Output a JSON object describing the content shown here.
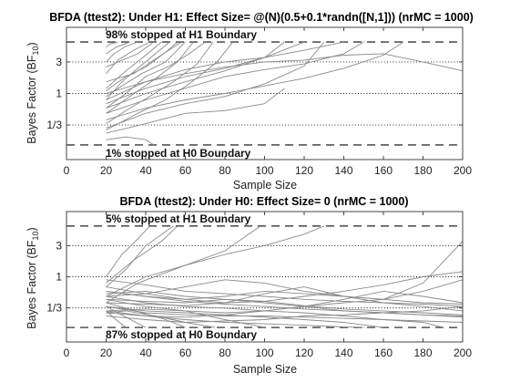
{
  "chart_data": [
    {
      "type": "line",
      "title": "BFDA (ttest2): Under H1: Effect Size= @(N)(0.5+0.1*randn([N,1])) (nrMC = 1000)",
      "xlabel": "Sample Size",
      "ylabel_main": "Bayes Factor (BF",
      "ylabel_sub": "10",
      "ylabel_end": ")",
      "xlim": [
        0,
        200
      ],
      "ylim": [
        0.1,
        10
      ],
      "yscale": "log",
      "xticks": [
        0,
        20,
        40,
        60,
        80,
        100,
        120,
        140,
        160,
        180,
        200
      ],
      "yticks": [
        {
          "value": 3,
          "label": "3"
        },
        {
          "value": 1,
          "label": "1"
        },
        {
          "value": 0.3333,
          "label": "1/3"
        }
      ],
      "boundaries": [
        6,
        0.1667
      ],
      "annotations": {
        "upper": "98% stopped at H1 Boundary",
        "lower": "1% stopped at H0 Boundary"
      },
      "series": [
        {
          "x": [
            20,
            30,
            40,
            48
          ],
          "y": [
            1.2,
            2.2,
            3.8,
            6
          ]
        },
        {
          "x": [
            20,
            26,
            34,
            42
          ],
          "y": [
            2.0,
            3.2,
            4.5,
            6
          ]
        },
        {
          "x": [
            20,
            28,
            36,
            44,
            52
          ],
          "y": [
            0.8,
            1.5,
            2.4,
            3.8,
            6
          ]
        },
        {
          "x": [
            20,
            24,
            30,
            36
          ],
          "y": [
            3.0,
            4.0,
            5.2,
            6
          ]
        },
        {
          "x": [
            20,
            32,
            44,
            56,
            64
          ],
          "y": [
            0.5,
            0.9,
            1.6,
            3.0,
            6
          ]
        },
        {
          "x": [
            20,
            30,
            42,
            54,
            66,
            74
          ],
          "y": [
            0.35,
            0.55,
            0.9,
            1.5,
            2.8,
            6
          ]
        },
        {
          "x": [
            20,
            25,
            32
          ],
          "y": [
            4.0,
            5.0,
            6
          ]
        },
        {
          "x": [
            20,
            30,
            40,
            52,
            62,
            70
          ],
          "y": [
            0.6,
            1.0,
            1.8,
            2.6,
            4.0,
            6
          ]
        },
        {
          "x": [
            20,
            22,
            26
          ],
          "y": [
            5.0,
            5.6,
            6
          ]
        },
        {
          "x": [
            20,
            34,
            46,
            58
          ],
          "y": [
            1.5,
            2.0,
            3.5,
            6
          ]
        },
        {
          "x": [
            20,
            28,
            38,
            50,
            60
          ],
          "y": [
            0.9,
            1.3,
            2.0,
            3.0,
            6
          ]
        },
        {
          "x": [
            20,
            36,
            50,
            62,
            76,
            84
          ],
          "y": [
            0.28,
            0.5,
            0.8,
            1.4,
            3.0,
            6
          ]
        },
        {
          "x": [
            20,
            30,
            40,
            50,
            56
          ],
          "y": [
            1.1,
            1.8,
            2.5,
            4.2,
            6
          ]
        },
        {
          "x": [
            20,
            26,
            36,
            44
          ],
          "y": [
            2.5,
            3.0,
            4.0,
            6
          ]
        },
        {
          "x": [
            20,
            40,
            60,
            80,
            100,
            120,
            140,
            160,
            180,
            200
          ],
          "y": [
            1.0,
            1.5,
            2.0,
            2.5,
            3.0,
            3.2,
            3.8,
            4.0,
            3.0,
            2.2
          ]
        },
        {
          "x": [
            20,
            40,
            60,
            80,
            100,
            110
          ],
          "y": [
            0.6,
            1.0,
            1.5,
            2.2,
            3.5,
            6
          ]
        },
        {
          "x": [
            20,
            40,
            60,
            80,
            100,
            120,
            140,
            150
          ],
          "y": [
            0.5,
            0.8,
            1.2,
            1.8,
            2.3,
            2.8,
            4.0,
            6
          ]
        },
        {
          "x": [
            20,
            40,
            60,
            80,
            100,
            120,
            140,
            160,
            170
          ],
          "y": [
            0.4,
            0.6,
            0.8,
            1.0,
            1.3,
            1.7,
            2.4,
            3.8,
            6
          ]
        },
        {
          "x": [
            20,
            40,
            60,
            80,
            100,
            120,
            130
          ],
          "y": [
            0.3,
            0.5,
            0.7,
            0.9,
            1.4,
            2.6,
            6
          ]
        },
        {
          "x": [
            20,
            40,
            60,
            80,
            100,
            110
          ],
          "y": [
            0.25,
            0.35,
            0.5,
            0.55,
            0.7,
            1.2
          ]
        },
        {
          "x": [
            20,
            30,
            40,
            44
          ],
          "y": [
            0.2,
            0.22,
            0.2,
            0.1667
          ]
        },
        {
          "x": [
            20,
            40,
            60,
            80,
            100,
            120,
            140
          ],
          "y": [
            0.8,
            1.5,
            2.3,
            3.0,
            3.5,
            4.5,
            6
          ]
        },
        {
          "x": [
            20,
            40,
            60,
            80,
            100,
            120
          ],
          "y": [
            0.7,
            1.2,
            1.8,
            2.4,
            3.5,
            6
          ]
        }
      ]
    },
    {
      "type": "line",
      "title": "BFDA (ttest2): Under H0: Effect Size= 0 (nrMC = 1000)",
      "xlabel": "Sample Size",
      "ylabel_main": "Bayes Factor (BF",
      "ylabel_sub": "10",
      "ylabel_end": ")",
      "xlim": [
        0,
        200
      ],
      "ylim": [
        0.1,
        10
      ],
      "yscale": "log",
      "xticks": [
        0,
        20,
        40,
        60,
        80,
        100,
        120,
        140,
        160,
        180,
        200
      ],
      "yticks": [
        {
          "value": 3,
          "label": "3"
        },
        {
          "value": 1,
          "label": "1"
        },
        {
          "value": 0.3333,
          "label": "1/3"
        }
      ],
      "boundaries": [
        6,
        0.1667
      ],
      "annotations": {
        "upper": "5% stopped at H1 Boundary",
        "lower": "87% stopped at H0 Boundary"
      },
      "series": [
        {
          "x": [
            20,
            28,
            36,
            42
          ],
          "y": [
            1.0,
            2.2,
            3.8,
            6
          ]
        },
        {
          "x": [
            20,
            30,
            40,
            54
          ],
          "y": [
            0.7,
            1.3,
            3.0,
            6
          ]
        },
        {
          "x": [
            20,
            36,
            60,
            80,
            92,
            98
          ],
          "y": [
            0.4,
            0.8,
            1.5,
            2.5,
            4.5,
            6
          ]
        },
        {
          "x": [
            20,
            34,
            48,
            56
          ],
          "y": [
            0.8,
            1.8,
            3.5,
            6
          ]
        },
        {
          "x": [
            20,
            40,
            60,
            80,
            100,
            120,
            130
          ],
          "y": [
            0.5,
            1.0,
            1.5,
            2.2,
            3.0,
            4.5,
            6
          ]
        },
        {
          "x": [
            20,
            25,
            30
          ],
          "y": [
            0.3,
            0.22,
            0.1667
          ]
        },
        {
          "x": [
            20,
            30,
            40
          ],
          "y": [
            0.35,
            0.24,
            0.1667
          ]
        },
        {
          "x": [
            20,
            35,
            50,
            60
          ],
          "y": [
            0.4,
            0.3,
            0.22,
            0.1667
          ]
        },
        {
          "x": [
            20,
            30,
            45,
            60,
            75
          ],
          "y": [
            0.28,
            0.3,
            0.25,
            0.2,
            0.1667
          ]
        },
        {
          "x": [
            20,
            40,
            60,
            80,
            100
          ],
          "y": [
            0.45,
            0.35,
            0.3,
            0.22,
            0.1667
          ]
        },
        {
          "x": [
            20,
            40,
            60,
            80,
            100,
            120,
            140,
            160
          ],
          "y": [
            0.35,
            0.3,
            0.28,
            0.26,
            0.24,
            0.22,
            0.2,
            0.1667
          ]
        },
        {
          "x": [
            20,
            40,
            60,
            80,
            100,
            120,
            140,
            160,
            180,
            190
          ],
          "y": [
            0.5,
            0.4,
            0.35,
            0.33,
            0.3,
            0.28,
            0.25,
            0.22,
            0.2,
            0.1667
          ]
        },
        {
          "x": [
            20,
            40,
            60,
            80,
            100,
            120,
            140,
            160,
            180,
            200
          ],
          "y": [
            0.6,
            0.5,
            0.42,
            0.38,
            0.35,
            0.32,
            0.3,
            0.28,
            0.26,
            0.25
          ]
        },
        {
          "x": [
            20,
            40,
            60,
            80,
            100,
            120,
            140,
            160,
            180,
            200
          ],
          "y": [
            0.45,
            0.42,
            0.4,
            0.45,
            0.42,
            0.36,
            0.32,
            0.3,
            0.28,
            0.26
          ]
        },
        {
          "x": [
            20,
            40,
            60,
            80,
            100,
            120,
            140,
            160,
            180,
            200
          ],
          "y": [
            0.4,
            0.38,
            0.36,
            0.4,
            0.55,
            0.7,
            0.5,
            0.4,
            0.35,
            0.3
          ]
        },
        {
          "x": [
            20,
            40,
            60,
            80,
            100,
            120,
            140,
            160,
            180,
            200
          ],
          "y": [
            0.3,
            0.32,
            0.3,
            0.28,
            0.3,
            0.35,
            0.45,
            0.6,
            0.5,
            0.4
          ]
        },
        {
          "x": [
            20,
            40,
            60,
            80,
            100,
            120,
            140,
            160,
            180,
            200
          ],
          "y": [
            0.55,
            0.6,
            0.5,
            0.45,
            0.4,
            0.35,
            0.3,
            0.28,
            0.26,
            0.24
          ]
        },
        {
          "x": [
            20,
            40,
            60,
            80,
            100,
            120,
            140,
            160,
            180,
            200
          ],
          "y": [
            0.5,
            0.55,
            0.7,
            0.9,
            0.8,
            0.6,
            0.5,
            0.45,
            0.6,
            0.9
          ]
        },
        {
          "x": [
            20,
            40,
            60,
            80,
            100,
            120,
            140,
            160,
            180,
            200
          ],
          "y": [
            0.3,
            0.25,
            0.24,
            0.26,
            0.3,
            0.35,
            0.4,
            0.45,
            0.8,
            3.5
          ]
        },
        {
          "x": [
            20,
            40,
            60,
            80,
            100,
            120,
            140,
            160,
            180,
            200
          ],
          "y": [
            0.25,
            0.22,
            0.2,
            0.21,
            0.22,
            0.25,
            0.26,
            0.28,
            0.3,
            0.35
          ]
        },
        {
          "x": [
            20,
            40,
            60,
            80,
            100,
            120,
            140,
            160,
            180,
            200
          ],
          "y": [
            0.7,
            0.55,
            0.45,
            0.4,
            0.42,
            0.5,
            0.6,
            0.75,
            1.0,
            1.2
          ]
        },
        {
          "x": [
            20,
            40,
            60,
            80,
            100,
            120,
            140,
            160,
            180,
            200
          ],
          "y": [
            0.35,
            0.28,
            0.26,
            0.25,
            0.25,
            0.24,
            0.23,
            0.22,
            0.21,
            0.2
          ]
        },
        {
          "x": [
            20,
            40,
            60,
            80,
            100,
            120,
            140,
            150
          ],
          "y": [
            0.28,
            0.25,
            0.22,
            0.2,
            0.19,
            0.18,
            0.17,
            0.1667
          ]
        },
        {
          "x": [
            20,
            40,
            60,
            80,
            100,
            120,
            140,
            160,
            180,
            200
          ],
          "y": [
            0.6,
            0.5,
            0.45,
            0.5,
            0.6,
            0.55,
            0.5,
            0.45,
            0.4,
            0.38
          ]
        },
        {
          "x": [
            20,
            40,
            60,
            80,
            100,
            120,
            140,
            160,
            180,
            200
          ],
          "y": [
            0.9,
            0.75,
            0.6,
            0.55,
            0.5,
            0.45,
            0.42,
            0.4,
            0.38,
            0.35
          ]
        }
      ]
    }
  ]
}
